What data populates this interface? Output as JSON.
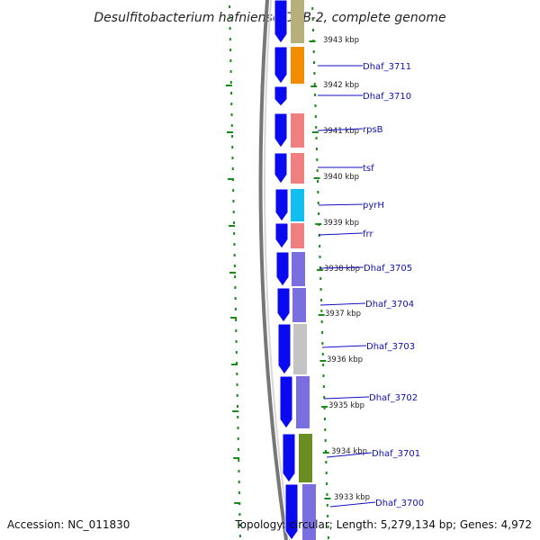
{
  "title": "Desulfitobacterium hafniense DCB-2, complete genome",
  "accession_text": "Accession: NC_011830",
  "topology_text": "Topology: circular; Length: 5,279,134 bp; Genes: 4,972",
  "kbp_labels": [
    "3943 kbp",
    "3942 kbp",
    "3941 kbp",
    "3940 kbp",
    "3939 kbp",
    "3938 kbp",
    "3937 kbp",
    "3936 kbp",
    "3935 kbp",
    "3934 kbp",
    "3933 kbp"
  ],
  "gene_labels": [
    "Dhaf_3711",
    "Dhaf_3710",
    "rpsB",
    "tsf",
    "pyrH",
    "frr",
    "Dhaf_3705",
    "Dhaf_3704",
    "Dhaf_3703",
    "Dhaf_3702",
    "Dhaf_3701",
    "Dhaf_3700"
  ],
  "colors": {
    "strand_arrow": "#0a0af0",
    "label_line": "#1010c0",
    "tick_green": "#1a8a1a",
    "backbone": "#777777",
    "cog_olive": "#b7b07a",
    "cog_orange": "#f28c00",
    "cog_salmon": "#f08080",
    "cog_cyan": "#10bff0",
    "cog_slate": "#7b6ee0",
    "cog_grey": "#c4c4c4",
    "cog_green": "#6b8e23"
  }
}
